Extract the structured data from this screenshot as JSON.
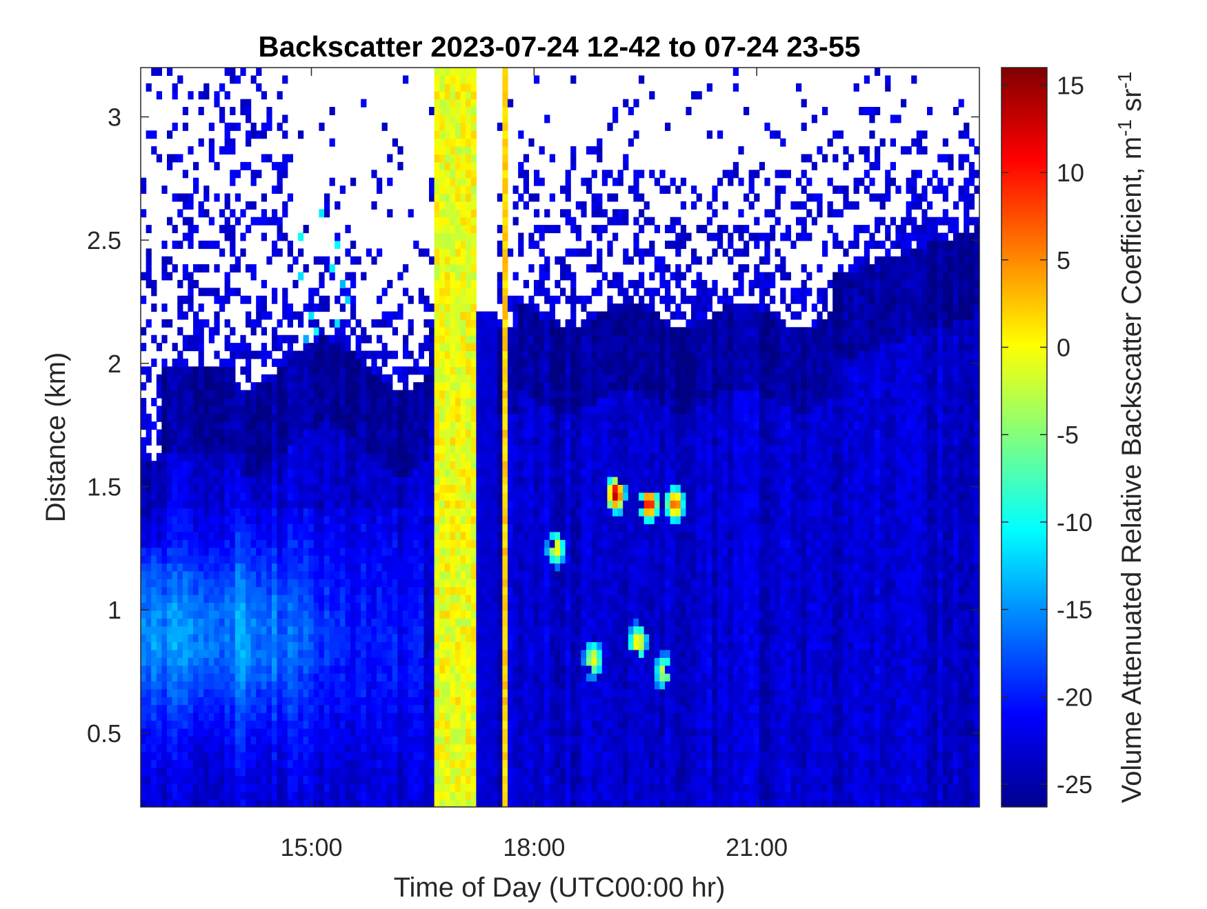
{
  "chart_data": {
    "type": "heatmap",
    "title": "Backscatter 2023-07-24 12-42 to 07-24 23-55",
    "xlabel": "Time of Day (UTC00:00 hr)",
    "ylabel": "Distance (km)",
    "xlim_hours": [
      12.7,
      24.0
    ],
    "ylim_km": [
      0.2,
      3.2
    ],
    "xticks": [
      {
        "value": 15,
        "label": "15:00"
      },
      {
        "value": 18,
        "label": "18:00"
      },
      {
        "value": 21,
        "label": "21:00"
      }
    ],
    "yticks": [
      {
        "value": 0.5,
        "label": "0.5"
      },
      {
        "value": 1,
        "label": "1"
      },
      {
        "value": 1.5,
        "label": "1.5"
      },
      {
        "value": 2,
        "label": "2"
      },
      {
        "value": 2.5,
        "label": "2.5"
      },
      {
        "value": 3,
        "label": "3"
      }
    ],
    "colorbar": {
      "label": "Volume Attenuated Relative Backscatter Coefficient, m",
      "label_sup1": "-1",
      "label_mid": " sr",
      "label_sup2": "-1",
      "range": [
        -26.3,
        16.0
      ],
      "colormap": "jet",
      "ticks": [
        {
          "value": 15,
          "label": "15"
        },
        {
          "value": 10,
          "label": "10"
        },
        {
          "value": 5,
          "label": "5"
        },
        {
          "value": 0,
          "label": "0"
        },
        {
          "value": -5,
          "label": "-5"
        },
        {
          "value": -10,
          "label": "-10"
        },
        {
          "value": -15,
          "label": "-15"
        },
        {
          "value": -20,
          "label": "-20"
        },
        {
          "value": -25,
          "label": "-25"
        }
      ]
    },
    "features": {
      "background_level": -21,
      "high_backscatter_band_hours": [
        16.65,
        17.25
      ],
      "high_backscatter_band_level": [
        -3,
        2
      ],
      "narrow_band_hours": [
        17.55,
        17.63
      ],
      "narrow_band_level": 2,
      "low_aerosol_layer_level": [
        -18,
        -12
      ],
      "layer_top_km_start": 1.5,
      "layer_top_km_mid": 2.0,
      "layer_top_km_end": 2.5,
      "cloud_patches": [
        {
          "hour": 18.3,
          "km": 1.25,
          "level": 1
        },
        {
          "hour": 19.4,
          "km": 0.87,
          "level": 2
        },
        {
          "hour": 18.8,
          "km": 0.8,
          "level": 0
        },
        {
          "hour": 19.1,
          "km": 1.47,
          "level": 14
        },
        {
          "hour": 19.55,
          "km": 1.43,
          "level": 12
        },
        {
          "hour": 19.9,
          "km": 1.43,
          "level": 8
        },
        {
          "hour": 19.75,
          "km": 0.75,
          "level": -2
        }
      ]
    }
  }
}
